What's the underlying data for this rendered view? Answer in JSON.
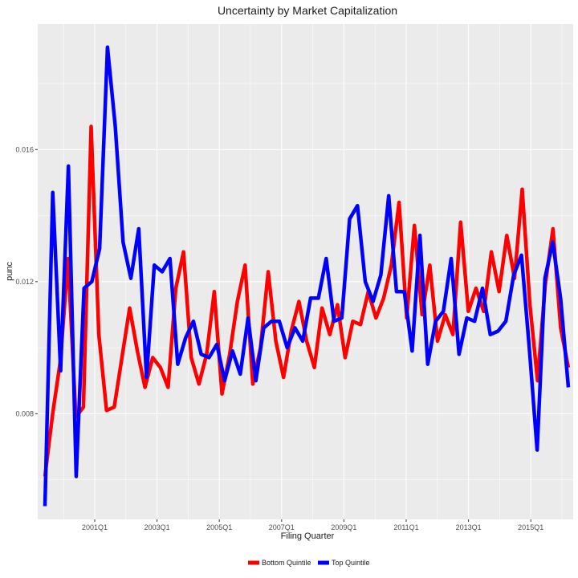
{
  "chart_data": {
    "type": "line",
    "title": "Uncertainty by Market Capitalization",
    "xlabel": "Filing Quarter",
    "ylabel": "punc",
    "x_tick_labels": [
      "2001Q1",
      "2003Q1",
      "2005Q1",
      "2007Q1",
      "2009Q1",
      "2011Q1",
      "2013Q1",
      "2015Q1"
    ],
    "y_tick_labels": [
      "0.008",
      "0.012",
      "0.016"
    ],
    "ylim": [
      0.0048,
      0.0198
    ],
    "grid": true,
    "legend_position": "bottom",
    "series": [
      {
        "name": "Bottom Quintile",
        "color": "#ff0000",
        "values": [
          0.0061,
          0.008,
          0.0096,
          0.0127,
          0.0079,
          0.0082,
          0.0167,
          0.0104,
          0.0081,
          0.0082,
          0.0097,
          0.0112,
          0.0099,
          0.0088,
          0.0097,
          0.0094,
          0.0088,
          0.0118,
          0.0129,
          0.0097,
          0.0089,
          0.0098,
          0.0117,
          0.0086,
          0.0098,
          0.0114,
          0.0125,
          0.0089,
          0.01,
          0.0123,
          0.0102,
          0.0091,
          0.0105,
          0.0114,
          0.0102,
          0.0094,
          0.0112,
          0.0104,
          0.0113,
          0.0097,
          0.0108,
          0.0107,
          0.0117,
          0.0109,
          0.0115,
          0.0125,
          0.0144,
          0.0109,
          0.0137,
          0.011,
          0.0125,
          0.0102,
          0.011,
          0.0104,
          0.0138,
          0.0111,
          0.0118,
          0.0111,
          0.0129,
          0.0117,
          0.0134,
          0.0121,
          0.0148,
          0.0113,
          0.009,
          0.0119,
          0.0136,
          0.0106,
          0.0094
        ]
      },
      {
        "name": "Top Quintile",
        "color": "#0000ff",
        "values": [
          0.0052,
          0.0147,
          0.0093,
          0.0155,
          0.0061,
          0.0118,
          0.012,
          0.013,
          0.0191,
          0.0167,
          0.0132,
          0.0121,
          0.0136,
          0.0091,
          0.0125,
          0.0123,
          0.0127,
          0.0095,
          0.0103,
          0.0108,
          0.0098,
          0.0097,
          0.0101,
          0.009,
          0.0099,
          0.0092,
          0.0109,
          0.009,
          0.0106,
          0.0108,
          0.0108,
          0.01,
          0.0106,
          0.0102,
          0.0115,
          0.0115,
          0.0127,
          0.0108,
          0.0109,
          0.0139,
          0.0143,
          0.012,
          0.0114,
          0.0122,
          0.0146,
          0.0117,
          0.0117,
          0.0099,
          0.0134,
          0.0095,
          0.0108,
          0.0111,
          0.0127,
          0.0098,
          0.0109,
          0.0108,
          0.0118,
          0.0104,
          0.0105,
          0.0108,
          0.0122,
          0.0128,
          0.01,
          0.0069,
          0.0121,
          0.0132,
          0.0115,
          0.0088
        ]
      }
    ]
  }
}
